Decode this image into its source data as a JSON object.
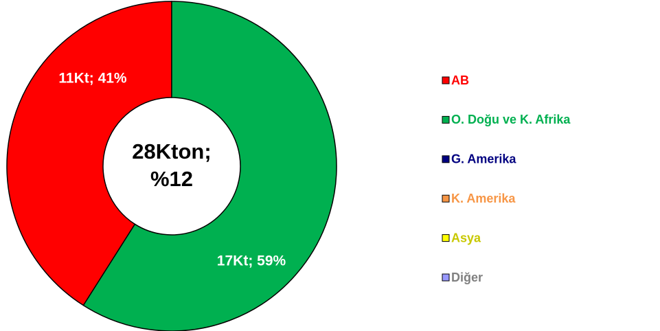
{
  "chart_data": {
    "type": "donut",
    "categories": [
      "AB",
      "O. Doğu ve K. Afrika",
      "G. Amerika",
      "K. Amerika",
      "Asya",
      "Diğer"
    ],
    "values": [
      41,
      59,
      0,
      0,
      0,
      0
    ],
    "value_labels": [
      "11Kt; 41%",
      "17Kt; 59%",
      null,
      null,
      null,
      null
    ],
    "colors": [
      "#ff0000",
      "#00b050",
      "#000080",
      "#f79646",
      "#ffff00",
      "#9999ff"
    ],
    "legend_text_colors": [
      "#ff0000",
      "#00b050",
      "#000080",
      "#f79646",
      "#c8c800",
      "#808080"
    ],
    "center_label": [
      "28Kton;",
      "%12"
    ],
    "legend": "right"
  }
}
